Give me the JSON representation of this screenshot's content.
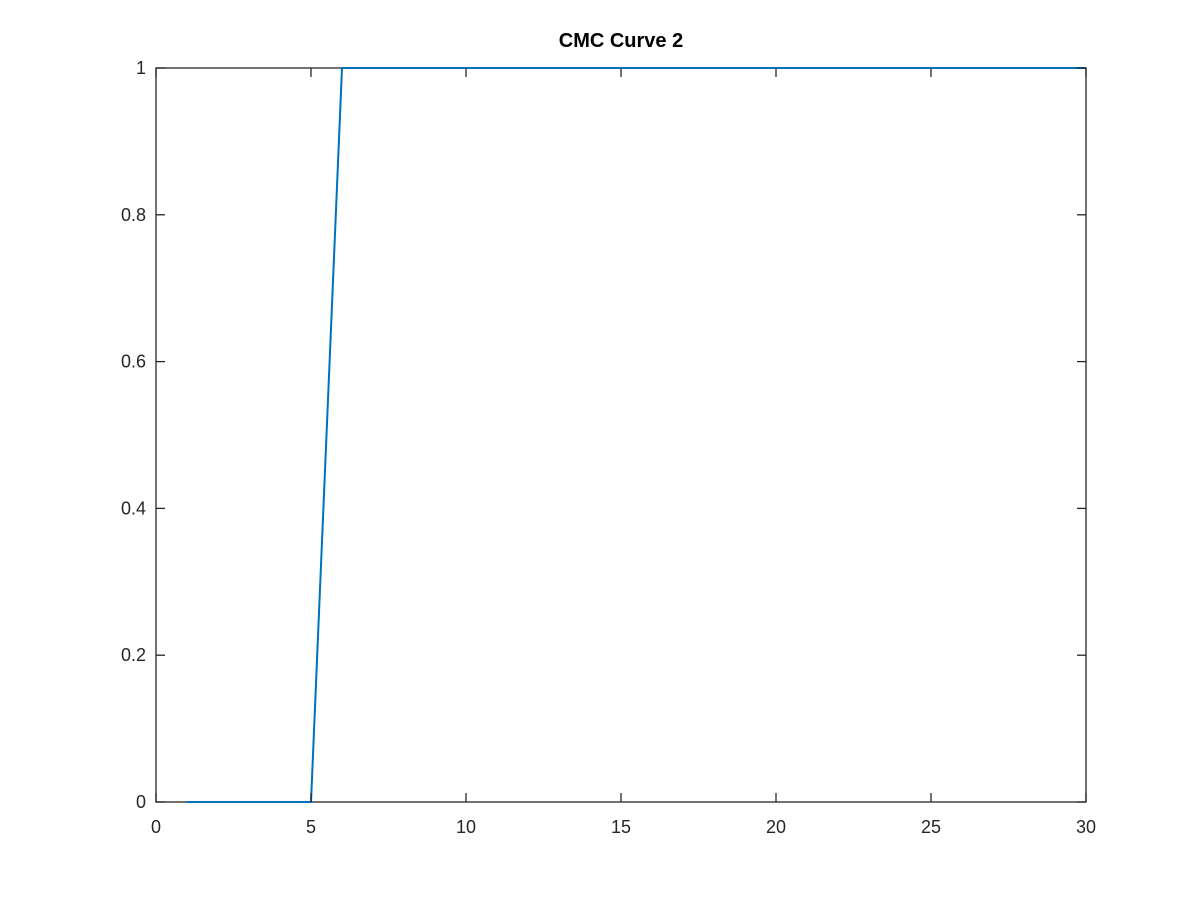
{
  "chart_data": {
    "type": "line",
    "title": "CMC Curve 2",
    "xlabel": "",
    "ylabel": "",
    "xlim": [
      0,
      30
    ],
    "ylim": [
      0,
      1
    ],
    "x_ticks": [
      0,
      5,
      10,
      15,
      20,
      25,
      30
    ],
    "x_tick_labels": [
      "0",
      "5",
      "10",
      "15",
      "20",
      "25",
      "30"
    ],
    "y_ticks": [
      0,
      0.2,
      0.4,
      0.6,
      0.8,
      1
    ],
    "y_tick_labels": [
      "0",
      "0.2",
      "0.4",
      "0.6",
      "0.8",
      "1"
    ],
    "grid": false,
    "series": [
      {
        "color": "#0072bd",
        "x": [
          1,
          2,
          3,
          4,
          5,
          6,
          7,
          8,
          9,
          10,
          11,
          12,
          13,
          14,
          15,
          16,
          17,
          18,
          19,
          20,
          21,
          22,
          23,
          24,
          25,
          26,
          27,
          28,
          29,
          30
        ],
        "y": [
          0,
          0,
          0,
          0,
          0,
          1,
          1,
          1,
          1,
          1,
          1,
          1,
          1,
          1,
          1,
          1,
          1,
          1,
          1,
          1,
          1,
          1,
          1,
          1,
          1,
          1,
          1,
          1,
          1,
          1
        ]
      }
    ],
    "axis_color": "#262626"
  }
}
